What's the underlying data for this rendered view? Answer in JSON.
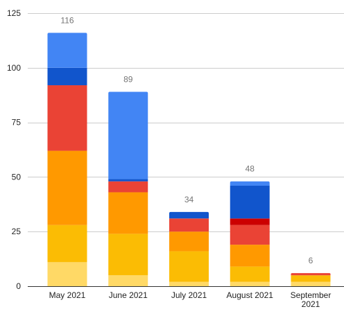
{
  "chart_data": {
    "type": "bar",
    "stacked": true,
    "title": "",
    "xlabel": "",
    "ylabel": "",
    "ylim": [
      0,
      125
    ],
    "yticks": [
      0,
      25,
      50,
      75,
      100,
      125
    ],
    "grid": true,
    "legend": "none",
    "categories": [
      "May 2021",
      "June 2021",
      "July 2021",
      "August 2021",
      "September 2021"
    ],
    "category_lines": [
      [
        "May 2021"
      ],
      [
        "June 2021"
      ],
      [
        "July 2021"
      ],
      [
        "August 2021"
      ],
      [
        "September",
        "2021"
      ]
    ],
    "totals": [
      116,
      89,
      34,
      48,
      6
    ],
    "series": [
      {
        "color": "#ffd966",
        "values": [
          11,
          5,
          2,
          2,
          2
        ]
      },
      {
        "color": "#fbbc04",
        "values": [
          17,
          19,
          14,
          7,
          3
        ]
      },
      {
        "color": "#ff9900",
        "values": [
          34,
          19,
          9,
          10,
          0
        ]
      },
      {
        "color": "#ea4335",
        "values": [
          30,
          5,
          6,
          9,
          1
        ]
      },
      {
        "color": "#cc0000",
        "values": [
          0,
          0,
          0,
          3,
          0
        ]
      },
      {
        "color": "#1155cc",
        "values": [
          8,
          1,
          3,
          15,
          0
        ]
      },
      {
        "color": "#4285f4",
        "values": [
          16,
          40,
          0,
          2,
          0
        ]
      }
    ]
  }
}
